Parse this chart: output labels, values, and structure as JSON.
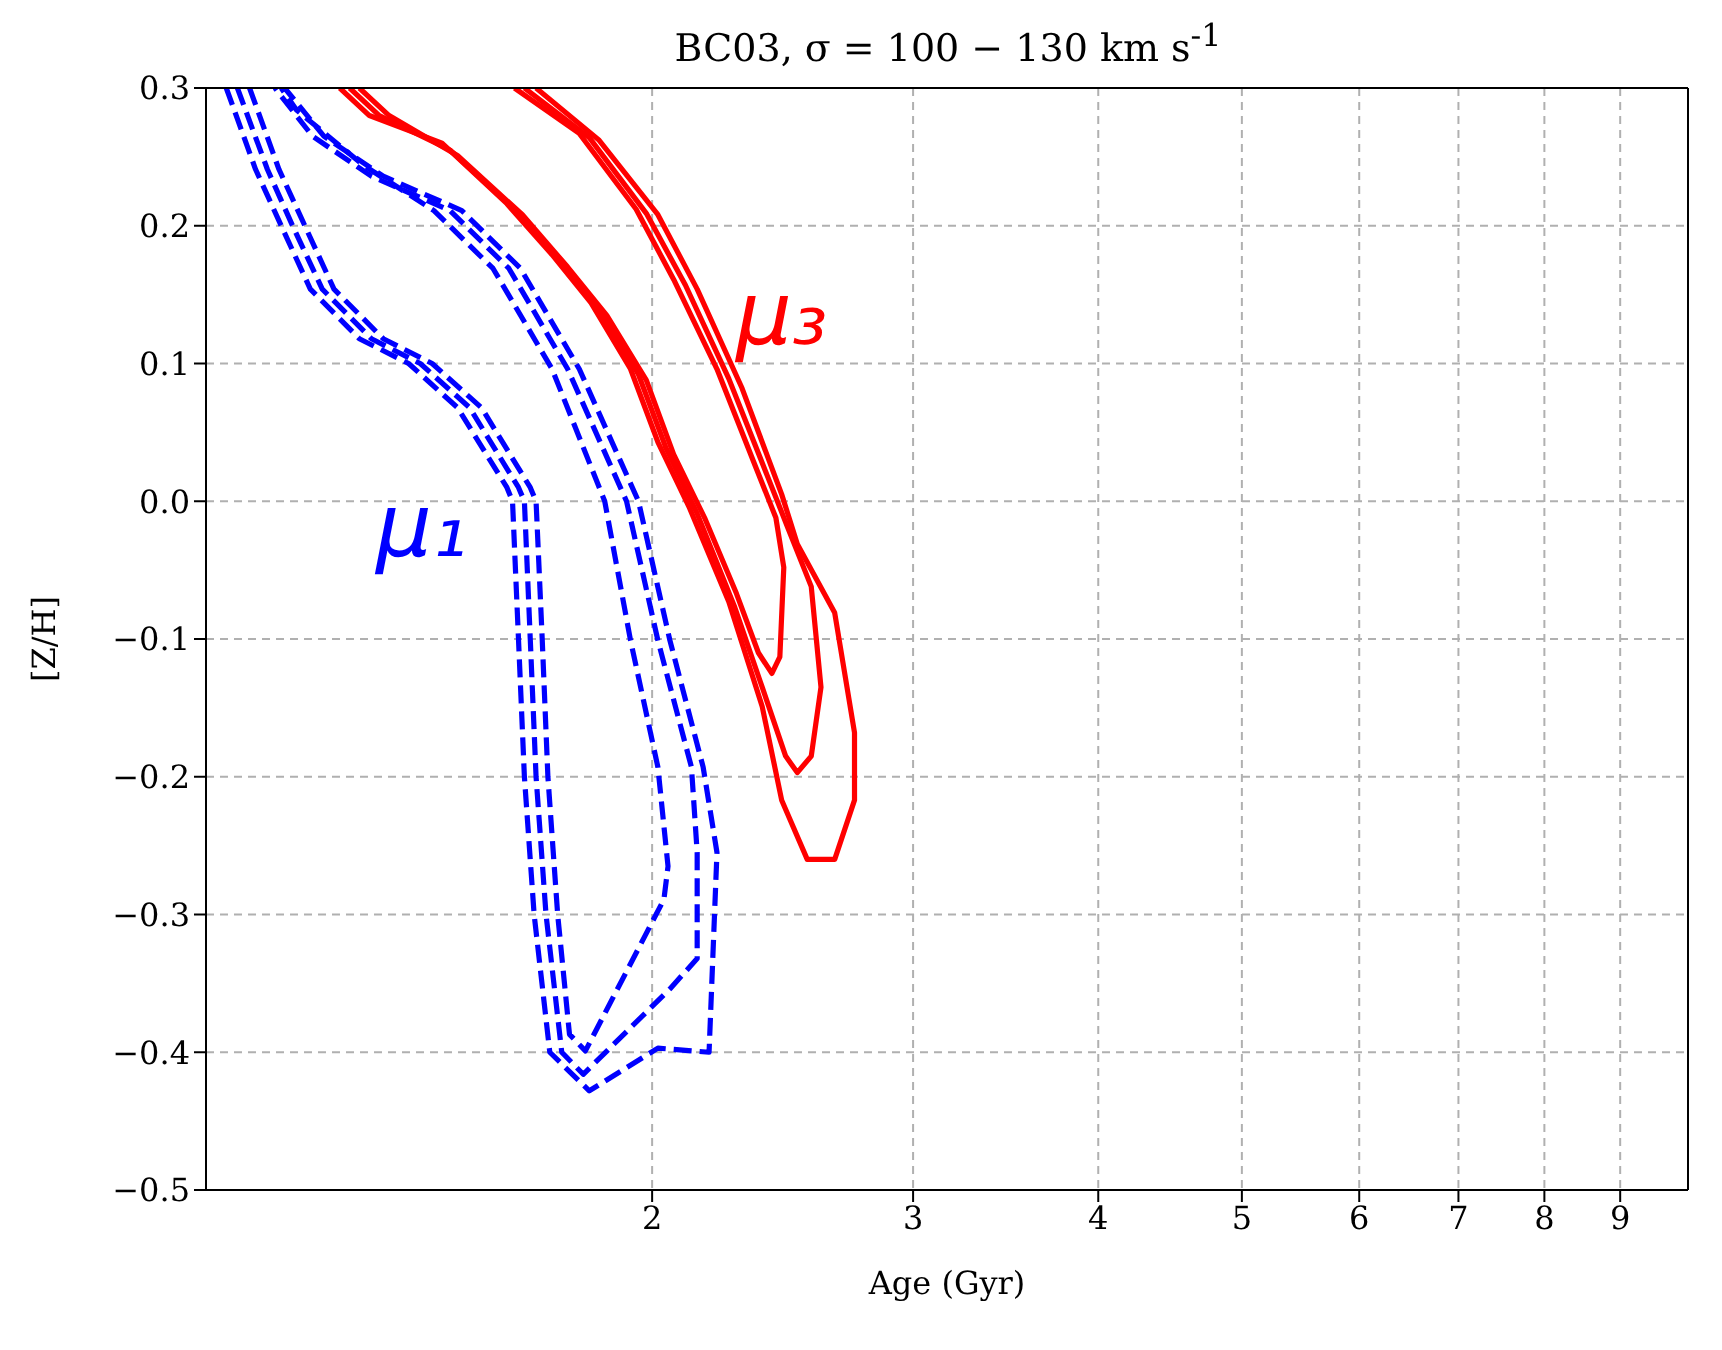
{
  "chart_data": {
    "type": "line",
    "title": "BC03, σ = 100 − 130 km s$^{-1}$",
    "xlabel": "Age (Gyr)",
    "ylabel": "[Z/H]",
    "log": "x",
    "grid": true,
    "marker": "none",
    "xlim": [
      1,
      10
    ],
    "xticks": [
      2,
      3,
      4,
      5,
      6,
      7,
      8,
      9
    ],
    "ylim": [
      -0.5,
      0.3
    ],
    "yticks": [
      {
        "value": -0.5,
        "label": "−0.5"
      },
      {
        "value": -0.4,
        "label": "−0.4"
      },
      {
        "value": -0.3,
        "label": "−0.3"
      },
      {
        "value": -0.2,
        "label": "−0.2"
      },
      {
        "value": -0.1,
        "label": "−0.1"
      },
      {
        "value": 0,
        "label": "0.0"
      },
      {
        "value": 0.1,
        "label": "0.1"
      },
      {
        "value": 0.2,
        "label": "0.2"
      },
      {
        "value": 0.3,
        "label": "0.3"
      }
    ],
    "annotations": [
      "μ₁",
      "μ₃"
    ],
    "series": [
      {
        "color": "#0000ff",
        "line_style": "dashed",
        "x": [
          1.032,
          1.08,
          1.124,
          1.176,
          1.269,
          1.37,
          1.478,
          1.596,
          1.61,
          1.625,
          1.64,
          1.665,
          1.706,
          1.814,
          2.018,
          2.185,
          2.212,
          2.165,
          2.056,
          1.958,
          1.786,
          1.63,
          1.488,
          1.317,
          1.201,
          1.13
        ],
        "values": [
          0.3,
          0.241,
          0.2,
          0.154,
          0.118,
          0.1,
          0.068,
          0.01,
          0.0,
          -0.1,
          -0.2,
          -0.3,
          -0.4,
          -0.428,
          -0.397,
          -0.4,
          -0.255,
          -0.193,
          -0.101,
          0.0,
          0.096,
          0.169,
          0.211,
          0.236,
          0.265,
          0.3
        ]
      },
      {
        "color": "#0000ff",
        "line_style": "dashed",
        "x": [
          1.05,
          1.1,
          1.144,
          1.198,
          1.293,
          1.395,
          1.506,
          1.625,
          1.64,
          1.655,
          1.67,
          1.696,
          1.738,
          1.797,
          2.056,
          2.145,
          2.145,
          2.126,
          2.018,
          1.922,
          1.754,
          1.601,
          1.461,
          1.293,
          1.18,
          1.113
        ],
        "values": [
          0.3,
          0.241,
          0.2,
          0.154,
          0.118,
          0.1,
          0.068,
          0.01,
          0.0,
          -0.1,
          -0.2,
          -0.3,
          -0.4,
          -0.416,
          -0.354,
          -0.332,
          -0.255,
          -0.193,
          -0.101,
          0.0,
          0.096,
          0.169,
          0.211,
          0.236,
          0.265,
          0.3
        ]
      },
      {
        "color": "#0000ff",
        "line_style": "dashed",
        "x": [
          1.07,
          1.12,
          1.166,
          1.22,
          1.317,
          1.421,
          1.534,
          1.655,
          1.67,
          1.686,
          1.701,
          1.727,
          1.759,
          1.803,
          2.037,
          2.05,
          2.018,
          1.934,
          1.858,
          1.712,
          1.562,
          1.425,
          1.277,
          1.151,
          1.124
        ],
        "values": [
          0.3,
          0.241,
          0.2,
          0.154,
          0.118,
          0.1,
          0.068,
          0.01,
          0.0,
          -0.1,
          -0.2,
          -0.3,
          -0.387,
          -0.399,
          -0.289,
          -0.265,
          -0.193,
          -0.101,
          0.0,
          0.096,
          0.169,
          0.211,
          0.244,
          0.284,
          0.3
        ]
      },
      {
        "color": "#ff0000",
        "line_style": "solid",
        "x": [
          1.231,
          1.289,
          1.443,
          1.596,
          1.712,
          1.819,
          1.934,
          2.018,
          2.12,
          2.253,
          2.373,
          2.446,
          2.545,
          2.656,
          2.739,
          2.739,
          2.656,
          2.506,
          2.446,
          2.3,
          2.145,
          2.018,
          1.842,
          1.67
        ],
        "values": [
          0.3,
          0.28,
          0.26,
          0.216,
          0.179,
          0.144,
          0.096,
          0.043,
          -0.005,
          -0.073,
          -0.149,
          -0.217,
          -0.26,
          -0.26,
          -0.217,
          -0.168,
          -0.081,
          -0.031,
          0.005,
          0.082,
          0.154,
          0.208,
          0.262,
          0.3
        ]
      },
      {
        "color": "#ff0000",
        "line_style": "solid",
        "x": [
          1.25,
          1.309,
          1.461,
          1.615,
          1.733,
          1.842,
          1.958,
          2.043,
          2.145,
          2.274,
          2.373,
          2.461,
          2.506,
          2.561,
          2.6,
          2.561,
          2.469,
          2.395,
          2.253,
          2.106,
          1.982,
          1.814,
          1.64
        ],
        "values": [
          0.3,
          0.28,
          0.255,
          0.212,
          0.174,
          0.14,
          0.092,
          0.039,
          -0.009,
          -0.077,
          -0.135,
          -0.185,
          -0.197,
          -0.185,
          -0.135,
          -0.062,
          -0.019,
          0.017,
          0.089,
          0.157,
          0.209,
          0.264,
          0.3
        ]
      },
      {
        "color": "#ff0000",
        "line_style": "solid",
        "x": [
          1.269,
          1.329,
          1.478,
          1.635,
          1.754,
          1.864,
          1.982,
          2.068,
          2.172,
          2.28,
          2.359,
          2.409,
          2.439,
          2.454,
          2.424,
          2.351,
          2.212,
          2.068,
          1.951,
          1.786,
          1.615
        ],
        "values": [
          0.3,
          0.28,
          0.251,
          0.208,
          0.17,
          0.135,
          0.088,
          0.034,
          -0.013,
          -0.067,
          -0.11,
          -0.125,
          -0.113,
          -0.048,
          -0.012,
          0.024,
          0.096,
          0.161,
          0.212,
          0.267,
          0.3
        ]
      }
    ]
  }
}
